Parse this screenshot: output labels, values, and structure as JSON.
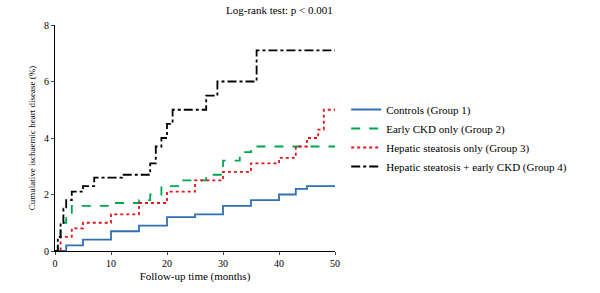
{
  "chart_data": {
    "type": "line",
    "annotation": "Log-rank test: p < 0.001",
    "x_label": "Follow-up time (months)",
    "y_label": "Cumulative ischaemic heart disease (%)",
    "xlim": [
      0,
      50
    ],
    "xticks": [
      0,
      10,
      20,
      30,
      40,
      50
    ],
    "ylim": [
      0,
      8
    ],
    "yticks": [
      0,
      2,
      4,
      6,
      8
    ],
    "grid": false,
    "legend": "right",
    "series": [
      {
        "name": "Controls (Group 1)",
        "color": "#2e6fb5",
        "line_style": "solid",
        "x": [
          0,
          2,
          5,
          10,
          15,
          20,
          25,
          30,
          35,
          40,
          43,
          45,
          50
        ],
        "values": [
          0,
          0.2,
          0.4,
          0.7,
          0.9,
          1.2,
          1.3,
          1.6,
          1.8,
          2.0,
          2.2,
          2.3,
          2.3
        ]
      },
      {
        "name": "Early CKD only (Group 2)",
        "color": "#00a651",
        "line_style": "dash",
        "x": [
          0,
          0.5,
          1,
          2,
          3,
          10,
          15,
          17,
          19,
          22,
          27,
          30,
          33,
          35,
          50
        ],
        "values": [
          0,
          0.5,
          1.0,
          1.3,
          1.6,
          1.7,
          1.8,
          2.0,
          2.3,
          2.5,
          2.7,
          3.2,
          3.5,
          3.7,
          3.7
        ]
      },
      {
        "name": "Hepatic steatosis only (Group 3)",
        "color": "#e3151a",
        "line_style": "dot",
        "x": [
          0,
          1,
          3,
          5,
          10,
          15,
          20,
          25,
          30,
          35,
          40,
          43,
          45,
          47,
          48,
          50
        ],
        "values": [
          0,
          0.5,
          0.8,
          1.0,
          1.3,
          1.7,
          2.1,
          2.5,
          2.8,
          3.1,
          3.3,
          3.7,
          4.0,
          4.3,
          5.0,
          5.0
        ]
      },
      {
        "name": "Hepatic steatosis + early CKD (Group 4)",
        "color": "#000000",
        "line_style": "dashdot",
        "x": [
          0,
          0.5,
          1,
          1.5,
          2,
          3,
          5,
          7,
          12,
          17,
          18,
          19,
          20,
          21,
          27,
          29,
          35,
          36,
          50
        ],
        "values": [
          0,
          0.5,
          1.0,
          1.5,
          1.8,
          2.1,
          2.3,
          2.6,
          2.7,
          3.1,
          3.7,
          4.0,
          4.5,
          5.0,
          5.5,
          6.0,
          6.0,
          7.1,
          7.1
        ]
      }
    ]
  }
}
